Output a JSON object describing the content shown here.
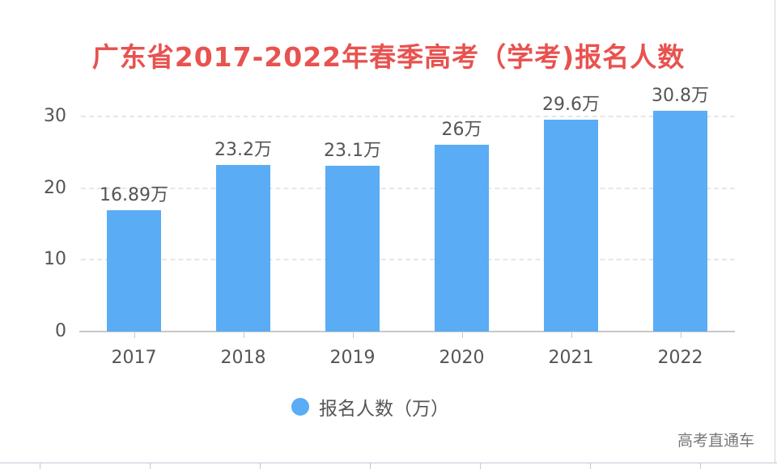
{
  "chart_data": {
    "type": "bar",
    "title": "广东省2017-2022年春季高考（学考)报名人数",
    "categories": [
      "2017",
      "2018",
      "2019",
      "2020",
      "2021",
      "2022"
    ],
    "series": [
      {
        "name": "报名人数（万）",
        "values": [
          16.89,
          23.2,
          23.1,
          26,
          29.6,
          30.8
        ]
      }
    ],
    "data_labels": [
      "16.89万",
      "23.2万",
      "23.1万",
      "26万",
      "29.6万",
      "30.8万"
    ],
    "xlabel": "",
    "ylabel": "",
    "ylim": [
      0,
      30
    ],
    "yticks": [
      "0",
      "10",
      "20",
      "30"
    ],
    "grid": true,
    "legend_position": "bottom"
  },
  "title": "广东省2017-2022年春季高考（学考)报名人数",
  "legend": {
    "label": "报名人数（万）"
  },
  "watermark": "高考直通车",
  "colors": {
    "title": "#e8524f",
    "bar": "#5aacf5",
    "text": "#555555"
  }
}
